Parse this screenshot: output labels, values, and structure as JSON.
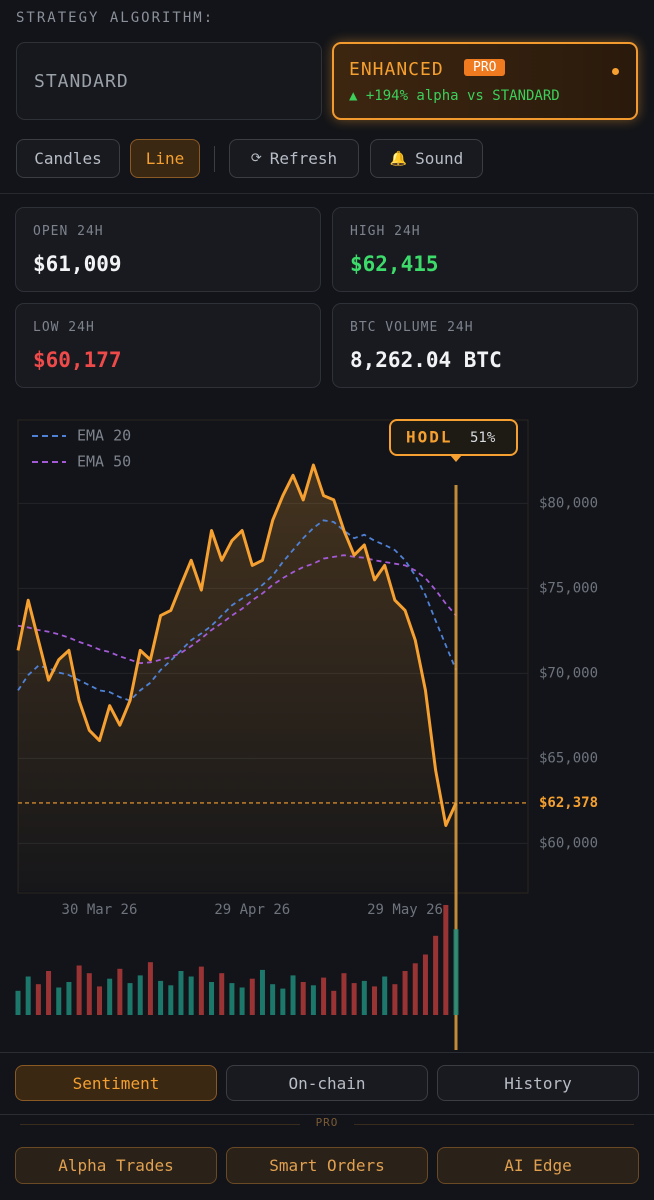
{
  "header": {
    "title": "STRATEGY ALGORITHM:"
  },
  "strategies": {
    "standard": {
      "label": "STANDARD"
    },
    "enhanced": {
      "label": "ENHANCED",
      "badge": "PRO",
      "note": "▲ +194% alpha vs STANDARD"
    }
  },
  "toolbar": [
    {
      "label": "Candles"
    },
    {
      "label": "Line"
    },
    {
      "icon": "⟳",
      "label": "Refresh"
    },
    {
      "icon": "🔔",
      "label": "Sound"
    }
  ],
  "stats": [
    {
      "label": "OPEN 24H",
      "value": "$61,009"
    },
    {
      "label": "HIGH 24H",
      "value": "$62,415"
    },
    {
      "label": "LOW 24H",
      "value": "$60,177"
    },
    {
      "label": "BTC VOLUME 24H",
      "value": "8,262.04 BTC"
    }
  ],
  "chart_data": {
    "type": "line",
    "categories": [
      null,
      null,
      null,
      null,
      null,
      null,
      null,
      null,
      "30 Mar 26",
      null,
      null,
      null,
      null,
      null,
      null,
      null,
      null,
      null,
      null,
      null,
      null,
      null,
      null,
      "29 Apr 26",
      null,
      null,
      null,
      null,
      null,
      null,
      null,
      null,
      null,
      null,
      null,
      null,
      null,
      null,
      "29 May 26",
      null,
      null,
      null,
      null,
      null
    ],
    "values": [
      71350,
      74300,
      71950,
      69600,
      70800,
      71350,
      68400,
      66650,
      66050,
      68100,
      66950,
      68400,
      71350,
      70800,
      73400,
      73700,
      75200,
      76650,
      74900,
      78400,
      76650,
      77800,
      78400,
      76350,
      76650,
      79000,
      80450,
      81650,
      80200,
      82250,
      80450,
      80200,
      78400,
      76950,
      77550,
      75500,
      76350,
      74300,
      73700,
      71950,
      69000,
      64300,
      61050,
      62378
    ],
    "color": "#f5a030",
    "series": [
      {
        "name": "EMA 20",
        "color": "#4f82d6",
        "values": [
          69000,
          69900,
          70450,
          70300,
          70050,
          69900,
          69600,
          69300,
          69000,
          68900,
          68600,
          68400,
          69000,
          69450,
          70200,
          70750,
          71350,
          71950,
          72350,
          72800,
          73400,
          74000,
          74400,
          74750,
          75200,
          75750,
          76550,
          77250,
          77950,
          78550,
          79000,
          78900,
          78400,
          77950,
          78150,
          77800,
          77550,
          77250,
          76650,
          75750,
          74600,
          73100,
          71650,
          70200
        ]
      },
      {
        "name": "EMA 50",
        "color": "#a45ad6",
        "values": [
          72800,
          72700,
          72550,
          72450,
          72300,
          72100,
          71850,
          71650,
          71400,
          71250,
          71000,
          70800,
          70600,
          70650,
          70800,
          70950,
          71200,
          71600,
          72050,
          72550,
          72950,
          73400,
          73800,
          74300,
          74700,
          75200,
          75600,
          75950,
          76250,
          76450,
          76750,
          76850,
          76950,
          76850,
          76800,
          76650,
          76550,
          76450,
          76350,
          76050,
          75600,
          74900,
          74100,
          73400
        ]
      }
    ],
    "volume": [
      22,
      35,
      28,
      40,
      25,
      30,
      45,
      38,
      26,
      33,
      42,
      29,
      36,
      48,
      31,
      27,
      40,
      35,
      44,
      30,
      38,
      29,
      25,
      33,
      41,
      28,
      24,
      36,
      30,
      27,
      34,
      22,
      38,
      29,
      31,
      26,
      35,
      28,
      40,
      47,
      55,
      72,
      100,
      78
    ],
    "volume_colors": {
      "up": "#1f8a7a",
      "down": "#b33a3a"
    },
    "ylim": [
      57200,
      84900
    ],
    "yticks": [
      {
        "value": 60000,
        "label": "$60,000"
      },
      {
        "value": 65000,
        "label": "$65,000"
      },
      {
        "value": 70000,
        "label": "$70,000"
      },
      {
        "value": 75000,
        "label": "$75,000"
      },
      {
        "value": 80000,
        "label": "$80,000"
      }
    ],
    "grid": true,
    "current_price": {
      "value": 62378,
      "label": "$62,378"
    },
    "signal": {
      "label": "HODL",
      "strength": "51%"
    }
  },
  "tabs": [
    "Sentiment",
    "On-chain",
    "History"
  ],
  "pro_label": "PRO",
  "pro_tabs": [
    "Alpha Trades",
    "Smart Orders",
    "AI Edge"
  ]
}
